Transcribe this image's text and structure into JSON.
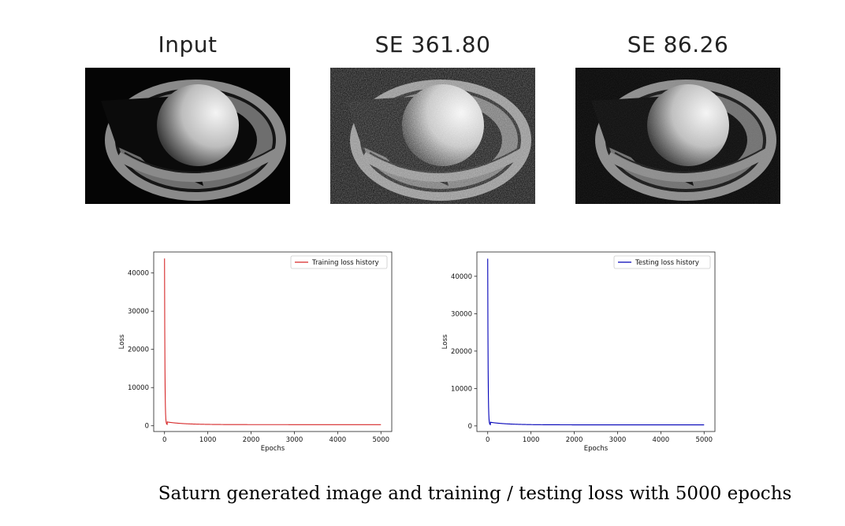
{
  "panels": [
    {
      "title": "Input",
      "noise": 0
    },
    {
      "title": "SE 361.80",
      "noise": 0.6
    },
    {
      "title": "SE 86.26",
      "noise": 0.15
    }
  ],
  "chart_data": [
    {
      "type": "line",
      "series": [
        {
          "name": "Training loss history",
          "color": "#d62728",
          "start": 43800,
          "plateau": 300
        }
      ],
      "xlabel": "Epochs",
      "ylabel": "Loss",
      "xlim": [
        -250,
        5250
      ],
      "ylim": [
        -1500,
        45500
      ],
      "xticks": [
        0,
        1000,
        2000,
        3000,
        4000,
        5000
      ],
      "yticks": [
        0,
        10000,
        20000,
        30000,
        40000
      ],
      "legend": "top-right",
      "grid": false
    },
    {
      "type": "line",
      "series": [
        {
          "name": "Testing loss history",
          "color": "#0000b8",
          "start": 44700,
          "plateau": 280
        }
      ],
      "xlabel": "Epochs",
      "ylabel": "Loss",
      "xlim": [
        -250,
        5250
      ],
      "ylim": [
        -1500,
        46500
      ],
      "xticks": [
        0,
        1000,
        2000,
        3000,
        4000,
        5000
      ],
      "yticks": [
        0,
        10000,
        20000,
        30000,
        40000
      ],
      "legend": "top-right",
      "grid": false
    }
  ],
  "caption": "Saturn generated image and training / testing loss with 5000 epochs"
}
